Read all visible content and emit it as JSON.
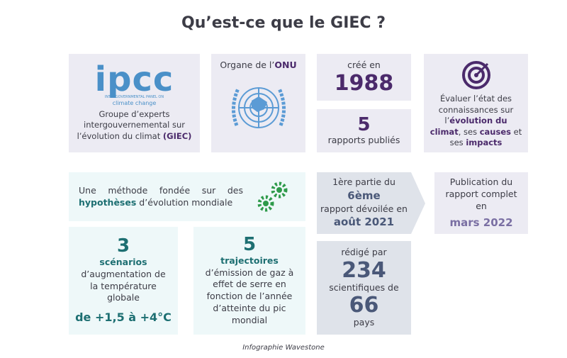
{
  "title": "Qu’est-ce que le GIEC ?",
  "ipcc": {
    "logo": "ipcc",
    "logo_line1": "INTERGOVERNMENTAL PANEL ON",
    "logo_line2": "climate change",
    "text": "Groupe d’experts intergouvernemental sur l’évolution du climat",
    "highlight": "(GIEC)"
  },
  "onu": {
    "text": "Organe de l’",
    "highlight": "ONU"
  },
  "created": {
    "label": "créé en",
    "year": "1988"
  },
  "reports": {
    "count": "5",
    "label": "rapports publiés"
  },
  "mission": {
    "text1": "Évaluer l’état des connaissances sur l’",
    "highlight1": "évolution du climat",
    "text2": ", ses",
    "highlight2": "causes",
    "text3": "et ses",
    "highlight3": "impacts"
  },
  "method": {
    "text1": "Une méthode fondée sur des",
    "highlight": "hypothèses",
    "text2": "d’évolution mondiale"
  },
  "scenarios": {
    "count": "3",
    "highlight": "scénarios",
    "text": "d’augmentation de la température globale",
    "range": "de +1,5 à +4°C"
  },
  "trajectories": {
    "count": "5",
    "highlight": "trajectoires",
    "text": "d’émission de gaz à effet de serre en fonction de l’année d’atteinte du pic mondial"
  },
  "first_part": {
    "text1": "1ère partie du",
    "highlight1": "6ème",
    "text2": "rapport dévoilée en",
    "highlight2": "août 2021"
  },
  "authors": {
    "label": "rédigé par",
    "count": "234",
    "text": "scientifiques de",
    "countries": "66",
    "unit": "pays"
  },
  "publication": {
    "text": "Publication du rapport complet en",
    "highlight": "mars 2022"
  },
  "footer": "Infographie Wavestone"
}
